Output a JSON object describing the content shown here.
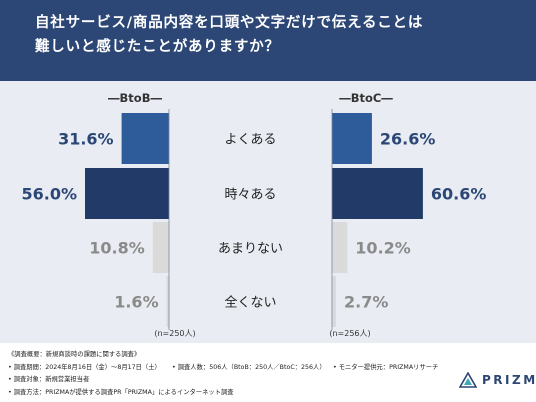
{
  "title": {
    "line1": "自社サービス/商品内容を口頭や文字だけで伝えることは",
    "line2": "難しいと感じたことがありますか？"
  },
  "chart_data": {
    "type": "bar",
    "categories": [
      "よくある",
      "時々ある",
      "あまりない",
      "全くない"
    ],
    "series": [
      {
        "name": "BtoB",
        "values": [
          31.6,
          56.0,
          10.8,
          1.6
        ],
        "n_label": "(n=250人)",
        "heading": "―BtoB―"
      },
      {
        "name": "BtoC",
        "values": [
          26.6,
          60.6,
          10.2,
          2.7
        ],
        "n_label": "(n=256人)",
        "heading": "―BtoC―"
      }
    ],
    "value_labels": {
      "BtoB": [
        "31.6%",
        "56.0%",
        "10.8%",
        "1.6%"
      ],
      "BtoC": [
        "26.6%",
        "60.6%",
        "10.2%",
        "2.7%"
      ]
    },
    "colors": {
      "よくある": "#2e5c9b",
      "時々ある": "#223a68",
      "あまりない": "#dadada",
      "全くない": "#dadada"
    },
    "label_colors": {
      "よくある": "#2c4775",
      "時々ある": "#2c4775",
      "あまりない": "#8a8a8a",
      "全くない": "#8a8a8a"
    }
  },
  "footnotes": {
    "overview": "《調査概要：新規商談時の課題に関する調査》",
    "period": "• 調査期間：2024年8月16日（金）〜8月17日（土）",
    "respondents": "• 調査人数：506人（BtoB：250人／BtoC：256人）",
    "provider": "• モニター提供元：PRIZMAリサーチ",
    "target": "• 調査対象：新規営業担当者",
    "method": "• 調査方法：PRIZMAが提供する調査PR「PRIZMA」によるインターネット調査"
  },
  "logo": {
    "text": "PRIZMA",
    "icon": "prizma-logo-icon"
  },
  "theme": {
    "header_bg": "#2c4775",
    "panel_bg": "#e9edf3"
  }
}
